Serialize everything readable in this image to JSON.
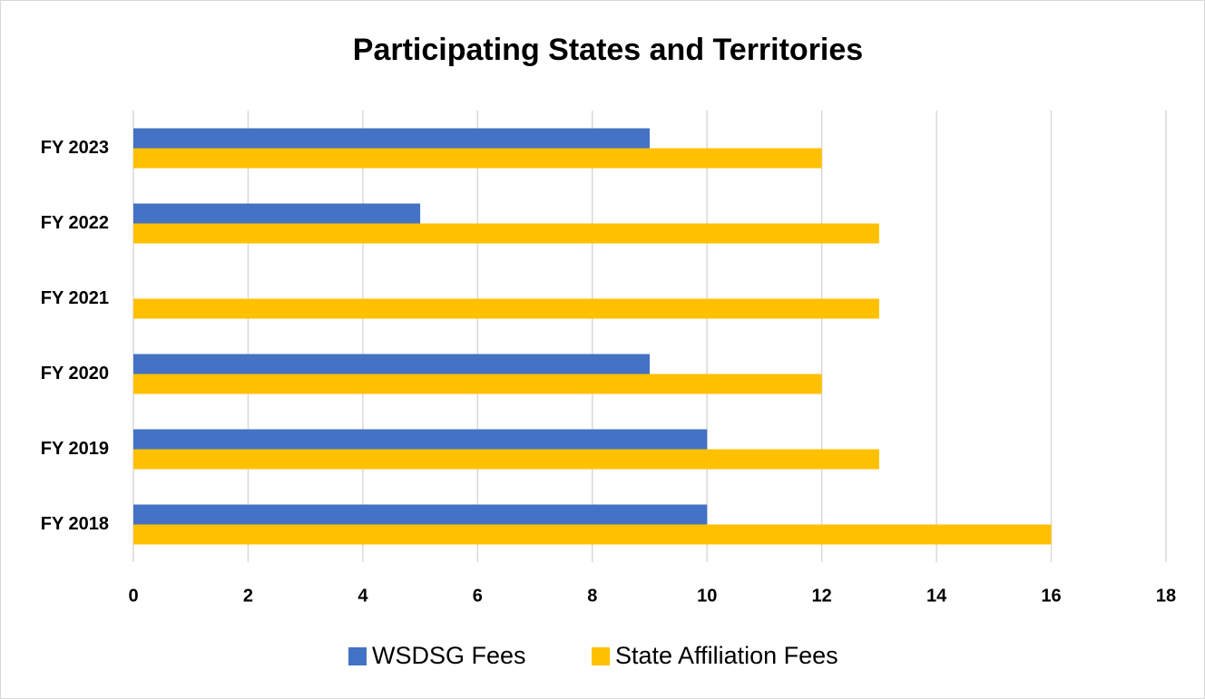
{
  "chart_data": {
    "type": "hbar",
    "title": "Participating States and Territories",
    "categories": [
      "FY 2023",
      "FY 2022",
      "FY 2021",
      "FY 2020",
      "FY 2019",
      "FY 2018"
    ],
    "series": [
      {
        "name": "WSDSG Fees",
        "color": "#4472c4",
        "values": [
          9,
          5,
          0,
          9,
          10,
          10
        ]
      },
      {
        "name": "State Affiliation Fees",
        "color": "#ffc000",
        "values": [
          12,
          13,
          13,
          12,
          13,
          16
        ]
      }
    ],
    "xlim": [
      0,
      18
    ],
    "xticks": [
      0,
      2,
      4,
      6,
      8,
      10,
      12,
      14,
      16,
      18
    ],
    "grid": true,
    "legend": "bottom"
  }
}
